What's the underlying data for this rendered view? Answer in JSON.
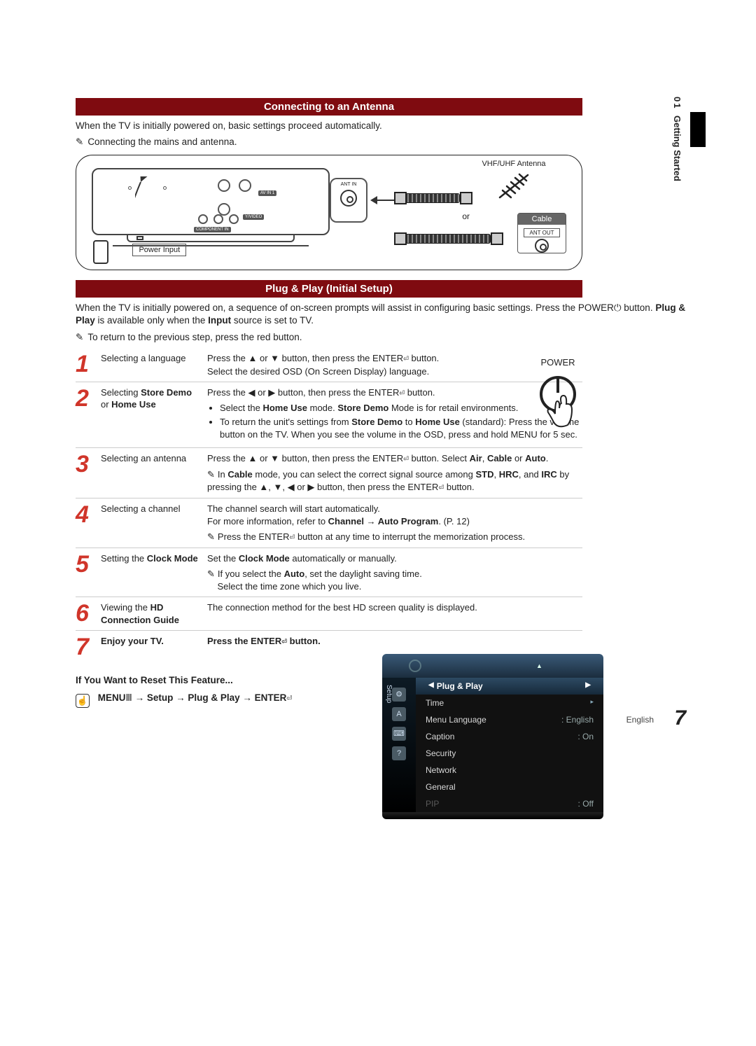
{
  "colors": {
    "section_header_bg": "#7f0b10",
    "section_header_text": "#ffffff",
    "step_number": "#d0352a",
    "osd_top_grad_from": "#3a5a78",
    "osd_top_grad_to": "#1b2d3e",
    "osd_sel_grad_from": "#2d4a63",
    "osd_sel_grad_to": "#16293a",
    "osd_body_bg": "#111111",
    "osd_dim_text": "#5a5a5a",
    "cable_label_bg": "#666666"
  },
  "sidebar": {
    "chapter_num": "01",
    "chapter_title": "Getting Started"
  },
  "section1": {
    "title": "Connecting to an Antenna",
    "intro": "When the TV is initially powered on, basic settings proceed automatically.",
    "note": "Connecting the mains and antenna."
  },
  "diagram": {
    "power_input": "Power Input",
    "ant_in": "ANT IN",
    "av_in": "AV IN 1",
    "ypbpr": "Y/VIDEO",
    "component_in": "COMPONENT IN",
    "vhf_uhf": "VHF/UHF Antenna",
    "or": "or",
    "cable": "Cable",
    "ant_out": "ANT OUT"
  },
  "section2": {
    "title": "Plug & Play (Initial Setup)",
    "intro_html": "When the TV is initially powered on, a sequence of on-screen prompts will assist in configuring basic settings. Press the POWER⏻ button. <b>Plug & Play</b> is available only when the <b>Input</b> source is set to TV.",
    "note": "To return to the previous step, press the red button."
  },
  "power_label": "POWER",
  "steps": [
    {
      "n": "1",
      "title_html": "Selecting a language",
      "body_html": "Press the ▲ or ▼ button, then press the ENTER<span class='enter-icon'>⏎</span> button.<br>Select the desired OSD (On Screen Display) language."
    },
    {
      "n": "2",
      "title_html": "Selecting <b>Store Demo</b> or <b>Home Use</b>",
      "body_html": "Press the ◀ or ▶ button, then press the ENTER<span class='enter-icon'>⏎</span> button.<ul><li>Select the <b>Home Use</b> mode. <b>Store Demo</b> Mode is for retail environments.</li><li>To return the unit's settings from <b>Store Demo</b> to <b>Home Use</b> (standard): Press the volume button on the TV. When you see the volume in the OSD, press and hold MENU for 5 sec.</li></ul>"
    },
    {
      "n": "3",
      "title_html": "Selecting an antenna",
      "body_html": "Press the ▲ or ▼ button, then press the ENTER<span class='enter-icon'>⏎</span> button. Select <b>Air</b>, <b>Cable</b> or <b>Auto</b>.<span class='inline-note'><span class='note-icon'>✎</span>In <b>Cable</b> mode, you can select the correct signal source among <b>STD</b>, <b>HRC</b>, and <b>IRC</b> by pressing the ▲, ▼, ◀ or ▶ button, then press the ENTER<span class='enter-icon'>⏎</span> button.</span>"
    },
    {
      "n": "4",
      "title_html": "Selecting a channel",
      "body_html": "The channel search will start automatically.<br>For more information, refer to <b>Channel → Auto Program</b>. (P. 12)<span class='inline-note'><span class='note-icon'>✎</span>Press the ENTER<span class='enter-icon'>⏎</span> button at any time to interrupt the memorization process.</span>"
    },
    {
      "n": "5",
      "title_html": "Setting the <b>Clock Mode</b>",
      "body_html": "Set the <b>Clock Mode</b> automatically or manually.<span class='inline-note'><span class='note-icon'>✎</span>If you select the <b>Auto</b>, set the daylight saving time.<br>&nbsp;&nbsp;&nbsp;&nbsp;Select the time zone which you live.</span>"
    },
    {
      "n": "6",
      "title_html": "Viewing the <b>HD Connection Guide</b>",
      "body_html": "The connection method for the best HD screen quality is displayed."
    },
    {
      "n": "7",
      "title_html": "<b>Enjoy your TV.</b>",
      "body_html": "<b>Press the ENTER<span class='enter-icon'>⏎</span> button.</b>"
    }
  ],
  "reset": {
    "title": "If You Want to Reset This Feature...",
    "path_html": "<b>MENU</b>Ⅲ → <b>Setup</b> → <b>Plug & Play</b> → <b>ENTER</b><span class='enter-icon'>⏎</span>"
  },
  "osd": {
    "side_label": "Setup",
    "side_icons": [
      "⚙",
      "A",
      "⌨",
      "?"
    ],
    "rows": [
      {
        "k": "Plug & Play",
        "v": "",
        "sel": true
      },
      {
        "k": "Time",
        "v": "",
        "tri": true
      },
      {
        "k": "Menu Language",
        "v": ": English"
      },
      {
        "k": "Caption",
        "v": ": On"
      },
      {
        "k": "Security",
        "v": ""
      },
      {
        "k": "Network",
        "v": ""
      },
      {
        "k": "General",
        "v": ""
      },
      {
        "k": "PIP",
        "v": ": Off",
        "dim": true
      }
    ]
  },
  "footer": {
    "lang": "English",
    "page": "7"
  }
}
